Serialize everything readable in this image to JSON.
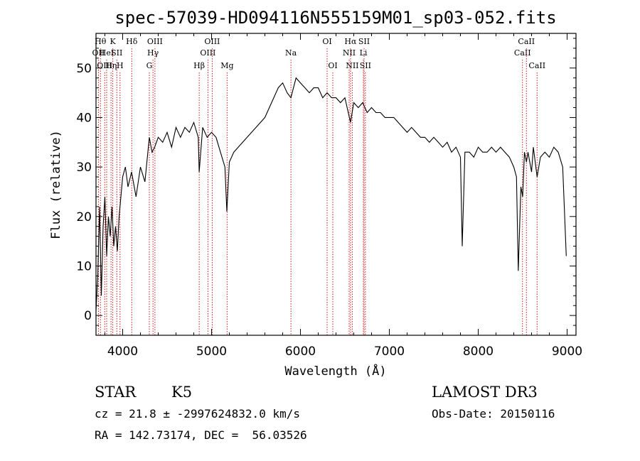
{
  "chart_data": {
    "type": "line",
    "title": "spec-57039-HD094116N555159M01_sp03-052.fits",
    "xlabel": "Wavelength (Å)",
    "ylabel": "Flux (relative)",
    "xlim": [
      3700,
      9100
    ],
    "ylim": [
      -4,
      57
    ],
    "xticks": [
      4000,
      5000,
      6000,
      7000,
      8000,
      9000
    ],
    "xtick_labels": [
      "4000",
      "5000",
      "6000",
      "7000",
      "8000",
      "9000"
    ],
    "yticks": [
      0,
      10,
      20,
      30,
      40,
      50
    ],
    "ytick_labels": [
      "0",
      "10",
      "20",
      "30",
      "40",
      "50"
    ],
    "grid": false,
    "line_color": "#000000",
    "marker_color": "#cc0000",
    "series": [
      {
        "x": [
          3700,
          3720,
          3740,
          3760,
          3780,
          3800,
          3820,
          3840,
          3860,
          3880,
          3900,
          3920,
          3940,
          3960,
          3980,
          4000,
          4030,
          4060,
          4100,
          4150,
          4200,
          4250,
          4300,
          4330,
          4360,
          4400,
          4450,
          4500,
          4550,
          4600,
          4650,
          4700,
          4750,
          4800,
          4850,
          4861,
          4900,
          4950,
          5000,
          5050,
          5100,
          5150,
          5172,
          5200,
          5250,
          5300,
          5400,
          5500,
          5600,
          5700,
          5750,
          5800,
          5850,
          5893,
          5950,
          6000,
          6050,
          6100,
          6150,
          6200,
          6250,
          6300,
          6350,
          6400,
          6450,
          6500,
          6563,
          6600,
          6650,
          6700,
          6750,
          6800,
          6850,
          6900,
          6950,
          7000,
          7050,
          7100,
          7150,
          7200,
          7250,
          7300,
          7350,
          7400,
          7450,
          7500,
          7550,
          7600,
          7650,
          7700,
          7750,
          7800,
          7820,
          7850,
          7900,
          7950,
          8000,
          8050,
          8100,
          8150,
          8200,
          8250,
          8300,
          8350,
          8400,
          8430,
          8450,
          8480,
          8500,
          8520,
          8542,
          8560,
          8600,
          8620,
          8662,
          8700,
          8750,
          8800,
          8850,
          8900,
          8950,
          8990
        ],
        "y": [
          1,
          8,
          22,
          4,
          18,
          24,
          12,
          20,
          16,
          22,
          14,
          18,
          13,
          20,
          24,
          28,
          30,
          26,
          29,
          24,
          30,
          27,
          36,
          33,
          34,
          36,
          35,
          37,
          34,
          38,
          36,
          38,
          37,
          39,
          36,
          29,
          38,
          36,
          37,
          36,
          33,
          30,
          21,
          31,
          33,
          34,
          36,
          38,
          40,
          44,
          46,
          47,
          45,
          44,
          48,
          47,
          46,
          45,
          46,
          46,
          44,
          45,
          44,
          44,
          43,
          44,
          39,
          43,
          42,
          43,
          41,
          42,
          41,
          41,
          40,
          40,
          40,
          39,
          38,
          37,
          38,
          37,
          36,
          36,
          35,
          36,
          35,
          34,
          35,
          33,
          34,
          32,
          14,
          33,
          33,
          32,
          34,
          33,
          33,
          34,
          33,
          34,
          33,
          32,
          30,
          28,
          9,
          26,
          24,
          33,
          31,
          33,
          29,
          34,
          28,
          32,
          33,
          32,
          34,
          33,
          30,
          12
        ]
      }
    ],
    "line_markers": [
      {
        "wavelength": 3727,
        "label": "OII",
        "row": 2
      },
      {
        "wavelength": 3750,
        "label": "Hθ",
        "row": 1
      },
      {
        "wavelength": 3798,
        "label": "OIII",
        "row": 3
      },
      {
        "wavelength": 3820,
        "label": "HeI",
        "row": 2
      },
      {
        "wavelength": 3869,
        "label": "Hη",
        "row": 3
      },
      {
        "wavelength": 3889,
        "label": "K",
        "row": 1
      },
      {
        "wavelength": 3934,
        "label": "SII",
        "row": 2
      },
      {
        "wavelength": 3970,
        "label": "H",
        "row": 3
      },
      {
        "wavelength": 4102,
        "label": "Hδ",
        "row": 1
      },
      {
        "wavelength": 4300,
        "label": "G",
        "row": 3
      },
      {
        "wavelength": 4341,
        "label": "Hγ",
        "row": 2
      },
      {
        "wavelength": 4363,
        "label": "OIII",
        "row": 1
      },
      {
        "wavelength": 4861,
        "label": "Hβ",
        "row": 3
      },
      {
        "wavelength": 4959,
        "label": "OIII",
        "row": 2
      },
      {
        "wavelength": 5007,
        "label": "OIII",
        "row": 1
      },
      {
        "wavelength": 5175,
        "label": "Mg",
        "row": 3
      },
      {
        "wavelength": 5893,
        "label": "Na",
        "row": 2
      },
      {
        "wavelength": 6300,
        "label": "OI",
        "row": 1
      },
      {
        "wavelength": 6364,
        "label": "OI",
        "row": 3
      },
      {
        "wavelength": 6548,
        "label": "NII",
        "row": 2
      },
      {
        "wavelength": 6563,
        "label": "Hα",
        "row": 1
      },
      {
        "wavelength": 6583,
        "label": "NII",
        "row": 3
      },
      {
        "wavelength": 6708,
        "label": "Li",
        "row": 2
      },
      {
        "wavelength": 6716,
        "label": "SII",
        "row": 1
      },
      {
        "wavelength": 6731,
        "label": "SII",
        "row": 3
      },
      {
        "wavelength": 8498,
        "label": "CaII",
        "row": 2
      },
      {
        "wavelength": 8542,
        "label": "CaII",
        "row": 1
      },
      {
        "wavelength": 8662,
        "label": "CaII",
        "row": 3
      }
    ]
  },
  "info": {
    "object_class": "STAR",
    "subclass": "K5",
    "survey": "LAMOST DR3",
    "cz": "cz = 21.8 ± -2997624832.0 km/s",
    "obs_date": "Obs-Date: 20150116",
    "coords": "RA = 142.73174, DEC =  56.03526"
  }
}
